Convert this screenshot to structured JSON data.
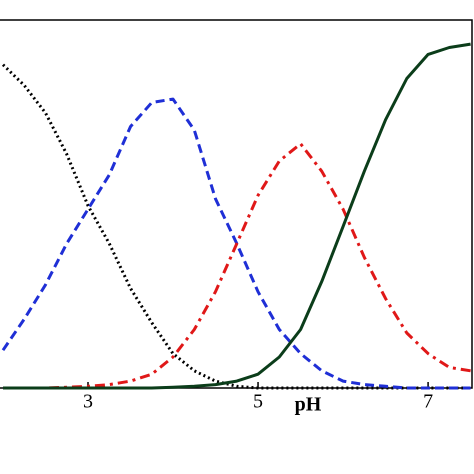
{
  "chart_data": {
    "type": "line",
    "x_label": "pH",
    "x": [
      2.0,
      2.25,
      2.5,
      2.75,
      3.0,
      3.25,
      3.5,
      3.75,
      4.0,
      4.25,
      4.5,
      4.75,
      5.0,
      5.25,
      5.5,
      5.75,
      6.0,
      6.25,
      6.5,
      6.75,
      7.0,
      7.25,
      7.5
    ],
    "series": [
      {
        "color": "#000000",
        "dash": "dotted",
        "values": [
          0.94,
          0.88,
          0.8,
          0.68,
          0.53,
          0.42,
          0.29,
          0.19,
          0.1,
          0.05,
          0.02,
          0.005,
          0,
          0,
          0,
          0,
          0,
          0,
          0,
          0,
          0,
          0,
          0
        ]
      },
      {
        "color": "#1f2fd6",
        "dash": "dashed",
        "values": [
          0.11,
          0.2,
          0.3,
          0.42,
          0.52,
          0.62,
          0.76,
          0.83,
          0.84,
          0.75,
          0.55,
          0.42,
          0.28,
          0.17,
          0.1,
          0.05,
          0.02,
          0.01,
          0.005,
          0,
          0,
          0,
          0
        ]
      },
      {
        "color": "#e01818",
        "dash": "dashdot",
        "values": [
          0,
          0,
          0,
          0.002,
          0.005,
          0.01,
          0.02,
          0.04,
          0.09,
          0.17,
          0.28,
          0.42,
          0.56,
          0.66,
          0.71,
          0.63,
          0.52,
          0.38,
          0.26,
          0.16,
          0.1,
          0.06,
          0.05
        ]
      },
      {
        "color": "#0b3d1a",
        "dash": "solid",
        "values": [
          0,
          0,
          0,
          0,
          0,
          0,
          0,
          0,
          0.002,
          0.005,
          0.01,
          0.02,
          0.04,
          0.09,
          0.17,
          0.31,
          0.47,
          0.63,
          0.78,
          0.9,
          0.97,
          0.99,
          1.0
        ]
      }
    ],
    "xlim": [
      1.965,
      7.54
    ],
    "xticks": [
      3,
      5,
      7
    ],
    "ylim": [
      0,
      1.07
    ]
  }
}
